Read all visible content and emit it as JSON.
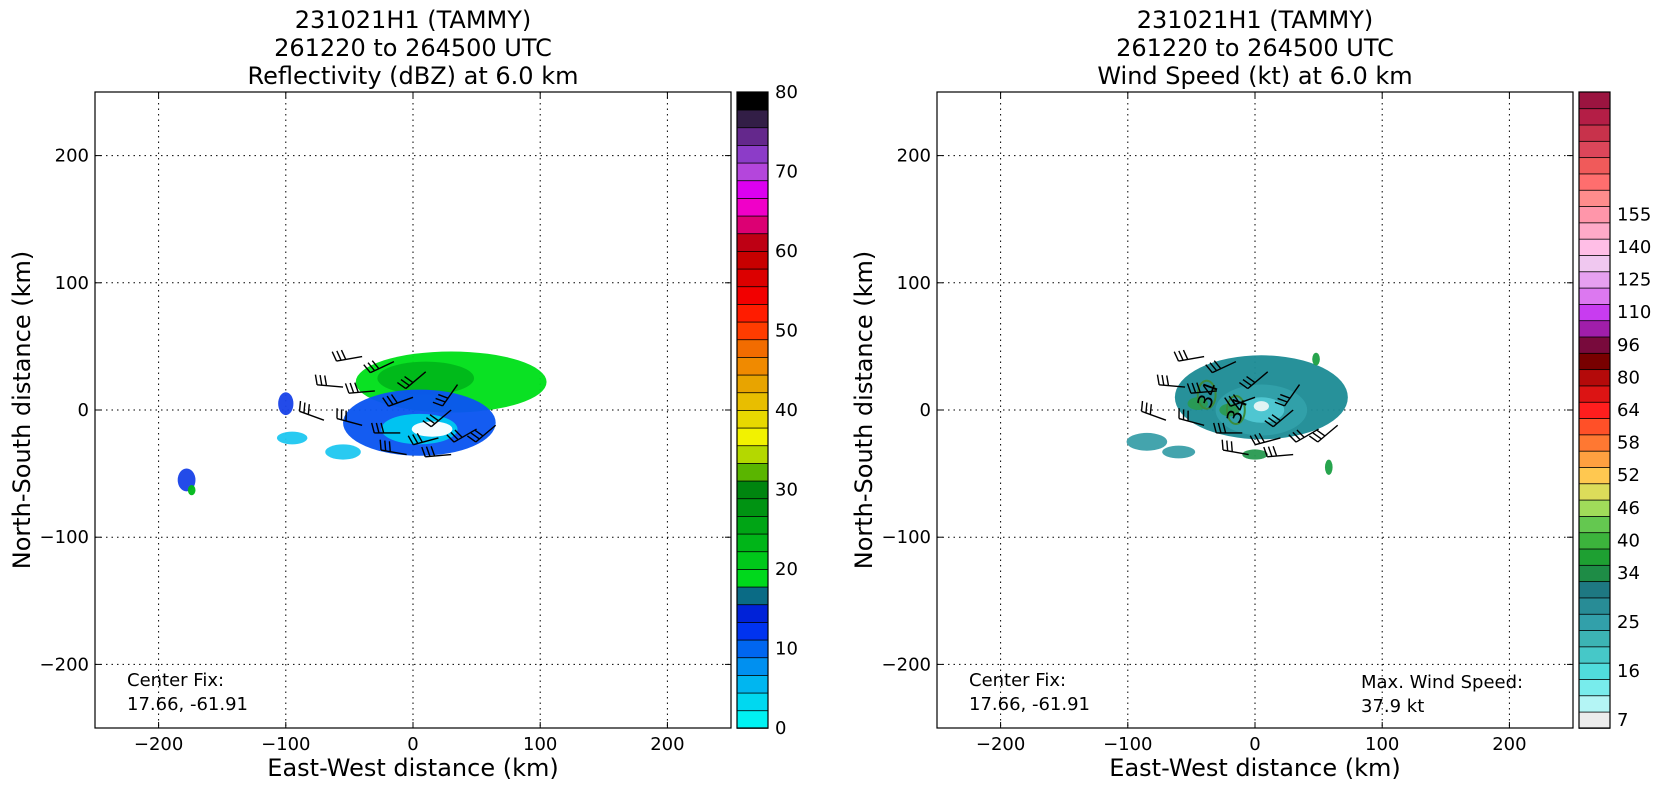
{
  "chart_data": [
    {
      "type": "heatmap",
      "title": [
        "231021H1 (TAMMY)",
        "261220 to 264500 UTC",
        "Reflectivity (dBZ) at 6.0 km"
      ],
      "xlabel": "East-West distance (km)",
      "ylabel": "North-South distance (km)",
      "xlim": [
        -250,
        250
      ],
      "ylim": [
        -250,
        250
      ],
      "xticks": [
        -200,
        -100,
        0,
        100,
        200
      ],
      "yticks": [
        -200,
        -100,
        0,
        100,
        200
      ],
      "xtick_labels": [
        "−200",
        "−100",
        "0",
        "100",
        "200"
      ],
      "ytick_labels": [
        "−200",
        "−100",
        "0",
        "100",
        "200"
      ],
      "grid": true,
      "annotations": {
        "center_fix_label": "Center Fix:",
        "center_fix_value": "17.66, -61.91"
      },
      "colorbar": {
        "min": 0,
        "max": 80,
        "ticks": [
          0,
          10,
          20,
          30,
          40,
          50,
          60,
          70,
          80
        ],
        "tick_labels": [
          "0",
          "10",
          "20",
          "30",
          "40",
          "50",
          "60",
          "70",
          "80"
        ],
        "colors": [
          "#00f2f2",
          "#00d8f0",
          "#00b6f0",
          "#0090f0",
          "#0066f0",
          "#0033f0",
          "#0022d8",
          "#0a6b85",
          "#00d81c",
          "#00c81a",
          "#00b518",
          "#00a515",
          "#009312",
          "#00850f",
          "#5ab500",
          "#b4d800",
          "#f2f200",
          "#e8d800",
          "#e8be00",
          "#e8a400",
          "#f08a00",
          "#f26c00",
          "#ff3c00",
          "#ff1c00",
          "#f20000",
          "#dc0000",
          "#c80000",
          "#be0014",
          "#dc0073",
          "#f000c8",
          "#dc00f0",
          "#b446dc",
          "#8c3cc8",
          "#64288c",
          "#321e46",
          "#000000"
        ]
      },
      "echo_regions": [
        {
          "level": "20 dBZ",
          "color": "#00e01a",
          "cx": 30,
          "cy": 22,
          "rx": 75,
          "ry": 24
        },
        {
          "level": "30 dBZ",
          "color": "#00b81a",
          "cx": 10,
          "cy": 25,
          "rx": 38,
          "ry": 13
        },
        {
          "level": "12 dBZ",
          "color": "#0a55f0",
          "cx": 5,
          "cy": -10,
          "rx": 60,
          "ry": 26
        },
        {
          "level": "5 dBZ",
          "color": "#00c8f0",
          "cx": 5,
          "cy": -15,
          "rx": 30,
          "ry": 12
        },
        {
          "level": "0 dBZ",
          "color": "#ffffff",
          "cx": 15,
          "cy": -15,
          "rx": 16,
          "ry": 6
        },
        {
          "level": "12 dBZ",
          "color": "#1a44e8",
          "cx": -100,
          "cy": 5,
          "rx": 6,
          "ry": 9
        },
        {
          "level": "5 dBZ",
          "color": "#20c8f0",
          "cx": -95,
          "cy": -22,
          "rx": 12,
          "ry": 5
        },
        {
          "level": "5 dBZ",
          "color": "#20c8f0",
          "cx": -55,
          "cy": -33,
          "rx": 14,
          "ry": 6
        },
        {
          "level": "12 dBZ",
          "color": "#1a44e8",
          "cx": -178,
          "cy": -55,
          "rx": 7,
          "ry": 9
        },
        {
          "level": "30 dBZ",
          "color": "#00b81a",
          "cx": -174,
          "cy": -63,
          "rx": 3,
          "ry": 4
        }
      ],
      "wind_barbs": [
        [
          -40,
          42,
          260
        ],
        [
          -15,
          38,
          245
        ],
        [
          10,
          30,
          230
        ],
        [
          35,
          20,
          215
        ],
        [
          -55,
          18,
          275
        ],
        [
          -30,
          15,
          265
        ],
        [
          0,
          10,
          250
        ],
        [
          30,
          0,
          230
        ],
        [
          -70,
          -8,
          290
        ],
        [
          -40,
          -12,
          285
        ],
        [
          -10,
          -18,
          270
        ],
        [
          20,
          -22,
          255
        ],
        [
          50,
          -15,
          240
        ],
        [
          -5,
          -35,
          280
        ],
        [
          30,
          -35,
          265
        ],
        [
          65,
          -12,
          230
        ]
      ]
    },
    {
      "type": "heatmap",
      "title": [
        "231021H1 (TAMMY)",
        "261220 to 264500 UTC",
        "Wind Speed (kt) at 6.0 km"
      ],
      "xlabel": "East-West distance (km)",
      "ylabel": "North-South distance (km)",
      "xlim": [
        -250,
        250
      ],
      "ylim": [
        -250,
        250
      ],
      "xticks": [
        -200,
        -100,
        0,
        100,
        200
      ],
      "yticks": [
        -200,
        -100,
        0,
        100,
        200
      ],
      "xtick_labels": [
        "−200",
        "−100",
        "0",
        "100",
        "200"
      ],
      "ytick_labels": [
        "−200",
        "−100",
        "0",
        "100",
        "200"
      ],
      "grid": true,
      "annotations": {
        "center_fix_label": "Center Fix:",
        "center_fix_value": "17.66, -61.91",
        "max_wind_label": "Max. Wind Speed:",
        "max_wind_value": "37.9 kt",
        "contour_labels": [
          "34",
          "34"
        ]
      },
      "max_wind_speed_kt": 37.9,
      "colorbar": {
        "ticks": [
          "7",
          "16",
          "25",
          "34",
          "40",
          "46",
          "52",
          "58",
          "64",
          "80",
          "96",
          "110",
          "125",
          "140",
          "155"
        ],
        "tick_boundaries": [
          0,
          3,
          6,
          9,
          11,
          13,
          15,
          17,
          19,
          21,
          23,
          25,
          27,
          29,
          31
        ],
        "colors": [
          "#ececec",
          "#b4f5f5",
          "#78ecec",
          "#50dcdc",
          "#46c8c8",
          "#3cb4b4",
          "#32a0aa",
          "#288c96",
          "#1e7882",
          "#1e8c46",
          "#1ea032",
          "#3cb43c",
          "#64c850",
          "#a0dc5a",
          "#dcdc5a",
          "#ffc850",
          "#ffa040",
          "#ff7832",
          "#ff5028",
          "#ff1e1e",
          "#dc1414",
          "#b40a0a",
          "#780000",
          "#780a3c",
          "#a01eaa",
          "#c83cf0",
          "#dc78f0",
          "#e6a0f0",
          "#f0c8f0",
          "#ffbee6",
          "#ffaac8",
          "#ff96aa",
          "#ff8c8c",
          "#ff6e6e",
          "#f05a5a",
          "#dc465a",
          "#c8324b",
          "#b41e46",
          "#9b1440"
        ]
      },
      "wind_regions": [
        {
          "level": "25 kt",
          "color": "#1e8c96",
          "cx": 5,
          "cy": 10,
          "rx": 68,
          "ry": 33
        },
        {
          "level": "20 kt",
          "color": "#32a0aa",
          "cx": 5,
          "cy": 0,
          "rx": 36,
          "ry": 20
        },
        {
          "level": "16 kt",
          "color": "#50c8d2",
          "cx": 5,
          "cy": 0,
          "rx": 18,
          "ry": 10
        },
        {
          "level": "7 kt",
          "color": "#e6f5f5",
          "cx": 5,
          "cy": 3,
          "rx": 6,
          "ry": 4
        },
        {
          "level": "20 kt",
          "color": "#3ca0aa",
          "cx": -85,
          "cy": -25,
          "rx": 16,
          "ry": 7
        },
        {
          "level": "20 kt",
          "color": "#3ca0aa",
          "cx": -60,
          "cy": -33,
          "rx": 13,
          "ry": 5
        },
        {
          "level": "34 kt",
          "color": "#1ea046",
          "cx": 48,
          "cy": 40,
          "rx": 3,
          "ry": 5
        },
        {
          "level": "34 kt",
          "color": "#1ea046",
          "cx": 58,
          "cy": -45,
          "rx": 3,
          "ry": 6
        },
        {
          "level": "34 kt",
          "color": "#2a9a52",
          "cx": -45,
          "cy": 5,
          "rx": 8,
          "ry": 5
        },
        {
          "level": "34 kt",
          "color": "#2a9a52",
          "cx": -20,
          "cy": 0,
          "rx": 8,
          "ry": 5
        },
        {
          "level": "34 kt",
          "color": "#2a9a52",
          "cx": 0,
          "cy": -35,
          "rx": 10,
          "ry": 4
        }
      ],
      "contour_positions": [
        [
          -38,
          12
        ],
        [
          -15,
          0
        ]
      ],
      "wind_barbs": [
        [
          -40,
          42,
          260
        ],
        [
          -15,
          38,
          245
        ],
        [
          10,
          30,
          230
        ],
        [
          35,
          20,
          215
        ],
        [
          -55,
          18,
          275
        ],
        [
          -30,
          15,
          265
        ],
        [
          0,
          10,
          250
        ],
        [
          30,
          0,
          230
        ],
        [
          -70,
          -8,
          290
        ],
        [
          -40,
          -12,
          285
        ],
        [
          -10,
          -18,
          270
        ],
        [
          20,
          -22,
          255
        ],
        [
          50,
          -15,
          240
        ],
        [
          -5,
          -35,
          280
        ],
        [
          30,
          -35,
          265
        ],
        [
          65,
          -12,
          230
        ]
      ]
    }
  ]
}
